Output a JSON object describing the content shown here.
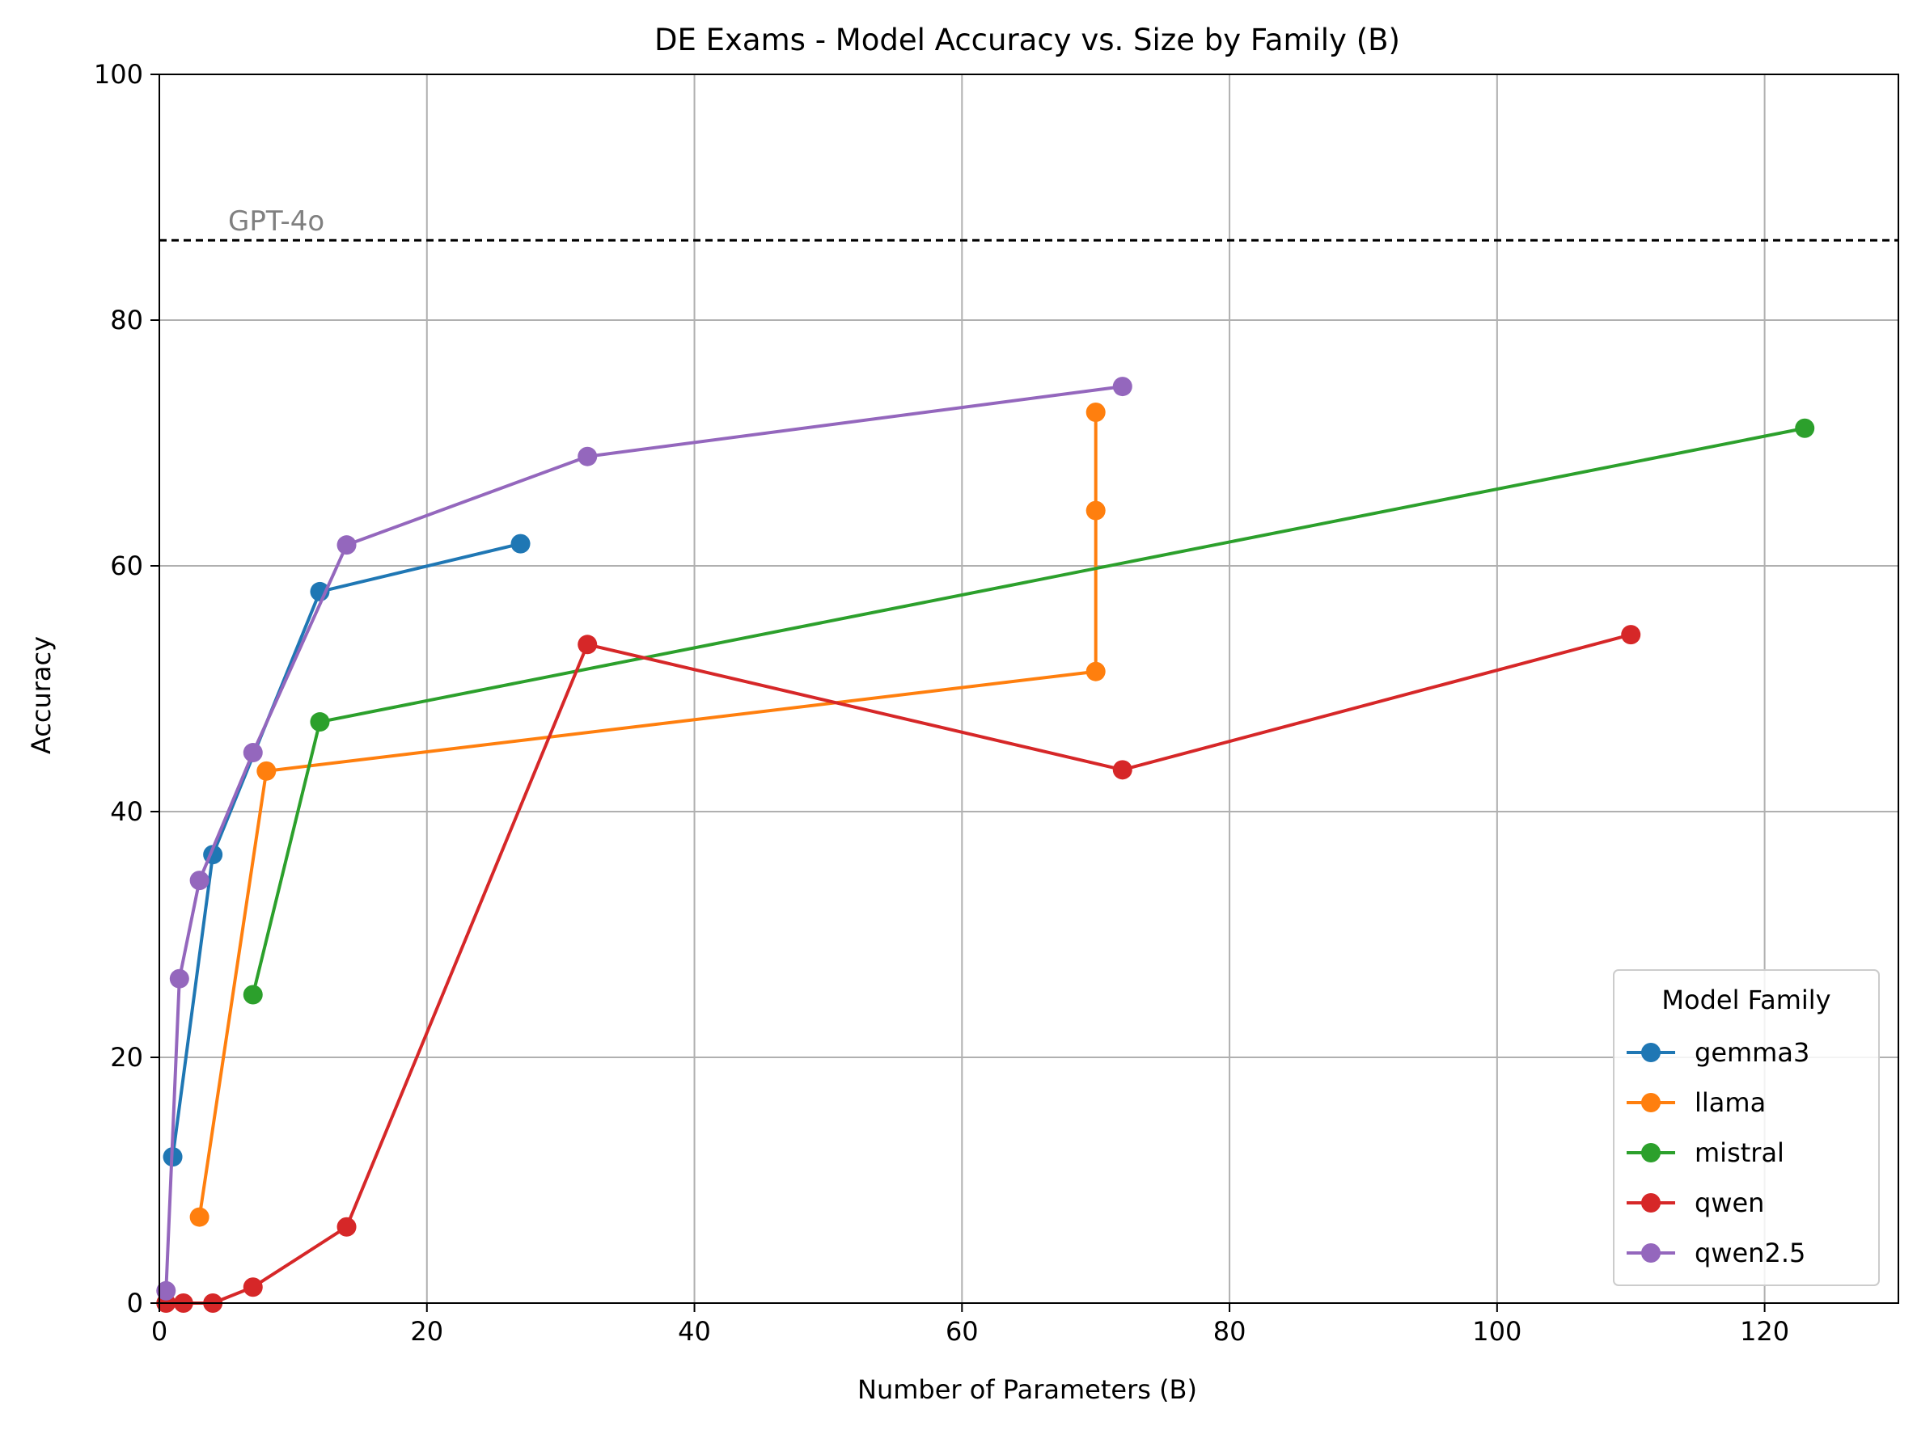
{
  "chart_data": {
    "type": "line",
    "title": "DE Exams - Model Accuracy vs. Size by Family (B)",
    "xlabel": "Number of Parameters (B)",
    "ylabel": "Accuracy",
    "xlim": [
      0,
      130
    ],
    "ylim": [
      0,
      100
    ],
    "xticks": [
      0,
      20,
      40,
      60,
      80,
      100,
      120
    ],
    "yticks": [
      0,
      20,
      40,
      60,
      80,
      100
    ],
    "grid": true,
    "legend": {
      "title": "Model Family",
      "placement": "lower-right"
    },
    "reference_line": {
      "label": "GPT-4o",
      "y": 86.5,
      "style": "dashed",
      "color": "#000000",
      "label_color": "#808080"
    },
    "series": [
      {
        "name": "gemma3",
        "color": "#1f77b4",
        "points": [
          [
            1,
            11.9
          ],
          [
            4,
            36.5
          ],
          [
            12,
            57.9
          ],
          [
            27,
            61.8
          ]
        ]
      },
      {
        "name": "llama",
        "color": "#ff7f0e",
        "points": [
          [
            3,
            7.0
          ],
          [
            8,
            43.3
          ],
          [
            70,
            51.4
          ],
          [
            70,
            64.5
          ],
          [
            70,
            72.5
          ]
        ]
      },
      {
        "name": "mistral",
        "color": "#2ca02c",
        "points": [
          [
            7,
            25.1
          ],
          [
            12,
            47.3
          ],
          [
            123,
            71.2
          ]
        ]
      },
      {
        "name": "qwen",
        "color": "#d62728",
        "points": [
          [
            0.5,
            0.0
          ],
          [
            1.8,
            0.0
          ],
          [
            4,
            0.0
          ],
          [
            7,
            1.3
          ],
          [
            14,
            6.2
          ],
          [
            32,
            53.6
          ],
          [
            72,
            43.4
          ],
          [
            110,
            54.4
          ]
        ]
      },
      {
        "name": "qwen2.5",
        "color": "#9467bd",
        "points": [
          [
            0.5,
            1.0
          ],
          [
            1.5,
            26.4
          ],
          [
            3,
            34.4
          ],
          [
            7,
            44.8
          ],
          [
            14,
            61.7
          ],
          [
            32,
            68.9
          ],
          [
            72,
            74.6
          ]
        ]
      }
    ]
  }
}
